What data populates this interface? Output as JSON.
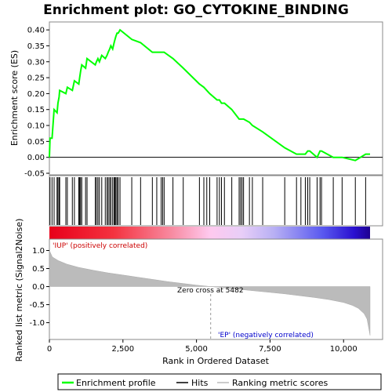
{
  "chart_data": {
    "type": "line",
    "title": "Enrichment plot: GO_CYTOKINE_BINDING",
    "xlabel": "Rank in Ordered Dataset",
    "top_ylabel": "Enrichment score (ES)",
    "bottom_ylabel": "Ranked list metric (Signal2Noise)",
    "xlim": [
      0,
      10900
    ],
    "x_ticks": [
      0,
      2500,
      5000,
      7500,
      10000
    ],
    "x_tick_labels": [
      "0",
      "2,500",
      "5,000",
      "7,500",
      "10,000"
    ],
    "top_ylim": [
      -0.05,
      0.42
    ],
    "top_y_ticks": [
      -0.05,
      0.0,
      0.05,
      0.1,
      0.15,
      0.2,
      0.25,
      0.3,
      0.35,
      0.4
    ],
    "top_y_tick_labels": [
      "-0.05",
      "0.00",
      "0.05",
      "0.10",
      "0.15",
      "0.20",
      "0.25",
      "0.30",
      "0.35",
      "0.40"
    ],
    "bottom_ylim": [
      -1.4,
      1.25
    ],
    "bottom_y_ticks": [
      -1.0,
      -0.5,
      0.0,
      0.5,
      1.0
    ],
    "bottom_y_tick_labels": [
      "-1.0",
      "-0.5",
      "0.0",
      "0.5",
      "1.0"
    ],
    "annotations": {
      "positive": "'IUP' (positively correlated)",
      "negative": "'EP' (negatively correlated)",
      "zero_cross": "Zero cross at 5482"
    },
    "zero_cross": 5482,
    "legend": [
      {
        "label": "Enrichment profile",
        "color": "#00ff00"
      },
      {
        "label": "Hits",
        "color": "#000000"
      },
      {
        "label": "Ranking metric scores",
        "color": "#bbbbbb"
      }
    ],
    "colors": {
      "profile": "#00ff00",
      "hits": "#000000",
      "metric": "#bbbbbb",
      "positive_text": "#cc0000",
      "negative_text": "#0000cc"
    },
    "hits": [
      20,
      90,
      160,
      260,
      290,
      330,
      350,
      560,
      610,
      780,
      850,
      1000,
      1030,
      1060,
      1100,
      1230,
      1280,
      1560,
      1600,
      1650,
      1700,
      1780,
      1900,
      1960,
      2000,
      2050,
      2090,
      2150,
      2200,
      2230,
      2260,
      2300,
      2340,
      2400,
      2800,
      3100,
      3500,
      3650,
      3800,
      3850,
      3900,
      4200,
      4550,
      5100,
      5250,
      5350,
      5450,
      5700,
      5780,
      5850,
      5950,
      6200,
      6450,
      6500,
      6550,
      6600,
      6800,
      6900,
      7250,
      8000,
      8400,
      8550,
      8700,
      8780,
      8850,
      9100,
      9200,
      9250,
      9650,
      9950,
      10400,
      10750
    ],
    "es_points": [
      [
        0,
        0.0
      ],
      [
        20,
        0.06
      ],
      [
        90,
        0.06
      ],
      [
        160,
        0.15
      ],
      [
        260,
        0.14
      ],
      [
        290,
        0.17
      ],
      [
        330,
        0.19
      ],
      [
        350,
        0.21
      ],
      [
        560,
        0.2
      ],
      [
        610,
        0.22
      ],
      [
        780,
        0.21
      ],
      [
        850,
        0.24
      ],
      [
        1000,
        0.23
      ],
      [
        1030,
        0.25
      ],
      [
        1060,
        0.27
      ],
      [
        1100,
        0.29
      ],
      [
        1230,
        0.28
      ],
      [
        1280,
        0.31
      ],
      [
        1560,
        0.29
      ],
      [
        1600,
        0.3
      ],
      [
        1650,
        0.31
      ],
      [
        1700,
        0.3
      ],
      [
        1780,
        0.32
      ],
      [
        1900,
        0.31
      ],
      [
        1960,
        0.32
      ],
      [
        2000,
        0.33
      ],
      [
        2050,
        0.34
      ],
      [
        2090,
        0.35
      ],
      [
        2150,
        0.34
      ],
      [
        2200,
        0.36
      ],
      [
        2230,
        0.37
      ],
      [
        2260,
        0.38
      ],
      [
        2300,
        0.39
      ],
      [
        2340,
        0.39
      ],
      [
        2400,
        0.4
      ],
      [
        2800,
        0.37
      ],
      [
        3100,
        0.36
      ],
      [
        3500,
        0.33
      ],
      [
        3650,
        0.33
      ],
      [
        3800,
        0.33
      ],
      [
        3850,
        0.33
      ],
      [
        3900,
        0.33
      ],
      [
        4200,
        0.31
      ],
      [
        4550,
        0.28
      ],
      [
        5100,
        0.23
      ],
      [
        5250,
        0.22
      ],
      [
        5350,
        0.21
      ],
      [
        5450,
        0.2
      ],
      [
        5700,
        0.18
      ],
      [
        5780,
        0.18
      ],
      [
        5850,
        0.17
      ],
      [
        5950,
        0.17
      ],
      [
        6200,
        0.15
      ],
      [
        6450,
        0.12
      ],
      [
        6500,
        0.12
      ],
      [
        6550,
        0.12
      ],
      [
        6600,
        0.12
      ],
      [
        6800,
        0.11
      ],
      [
        6900,
        0.1
      ],
      [
        7250,
        0.08
      ],
      [
        8000,
        0.03
      ],
      [
        8400,
        0.01
      ],
      [
        8550,
        0.01
      ],
      [
        8700,
        0.01
      ],
      [
        8780,
        0.02
      ],
      [
        8850,
        0.02
      ],
      [
        9100,
        0.0
      ],
      [
        9200,
        0.02
      ],
      [
        9250,
        0.02
      ],
      [
        9650,
        0.0
      ],
      [
        9950,
        0.0
      ],
      [
        10400,
        -0.01
      ],
      [
        10750,
        0.01
      ],
      [
        10900,
        0.01
      ]
    ],
    "metric_points": [
      [
        0,
        1.0
      ],
      [
        100,
        0.82
      ],
      [
        300,
        0.72
      ],
      [
        600,
        0.62
      ],
      [
        1000,
        0.53
      ],
      [
        1500,
        0.45
      ],
      [
        2000,
        0.38
      ],
      [
        2500,
        0.32
      ],
      [
        3000,
        0.26
      ],
      [
        3500,
        0.2
      ],
      [
        4000,
        0.14
      ],
      [
        4500,
        0.09
      ],
      [
        5000,
        0.04
      ],
      [
        5482,
        0.0
      ],
      [
        6000,
        -0.04
      ],
      [
        6500,
        -0.08
      ],
      [
        7000,
        -0.12
      ],
      [
        7500,
        -0.16
      ],
      [
        8000,
        -0.2
      ],
      [
        8500,
        -0.25
      ],
      [
        9000,
        -0.3
      ],
      [
        9500,
        -0.36
      ],
      [
        10000,
        -0.44
      ],
      [
        10300,
        -0.52
      ],
      [
        10500,
        -0.6
      ],
      [
        10700,
        -0.75
      ],
      [
        10800,
        -0.9
      ],
      [
        10900,
        -1.35
      ]
    ]
  }
}
